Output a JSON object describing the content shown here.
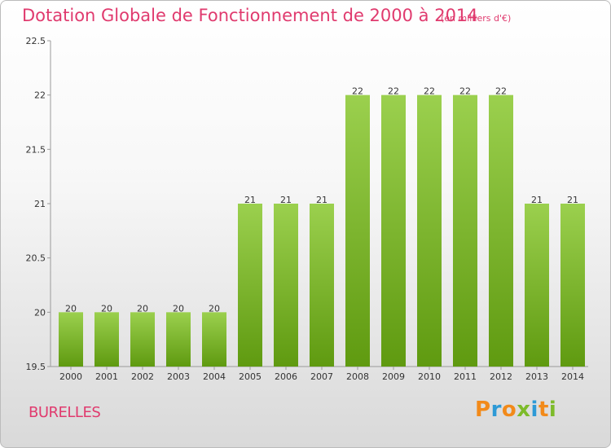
{
  "chart_data": {
    "type": "bar",
    "title": "Dotation Globale de Fonctionnement de 2000 à 2014",
    "subtitle": "(en milliers d'€)",
    "categories": [
      "2000",
      "2001",
      "2002",
      "2003",
      "2004",
      "2005",
      "2006",
      "2007",
      "2008",
      "2009",
      "2010",
      "2011",
      "2012",
      "2013",
      "2014"
    ],
    "values": [
      20,
      20,
      20,
      20,
      20,
      21,
      21,
      21,
      22,
      22,
      22,
      22,
      22,
      21,
      21
    ],
    "data_labels": [
      "20",
      "20",
      "20",
      "20",
      "20",
      "21",
      "21",
      "21",
      "22",
      "22",
      "22",
      "22",
      "22",
      "21",
      "21"
    ],
    "ylim": [
      19.5,
      22.5
    ],
    "yticks": [
      19.5,
      20,
      20.5,
      21,
      21.5,
      22,
      22.5
    ],
    "ytick_labels": [
      "19.5",
      "20",
      "20.5",
      "21",
      "21.5",
      "22",
      "22.5"
    ],
    "grid": false,
    "bar_color_top": "#9bd04e",
    "bar_color_bottom": "#5f9a10"
  },
  "footer": {
    "commune": "BURELLES",
    "brand": "Proxiti"
  }
}
